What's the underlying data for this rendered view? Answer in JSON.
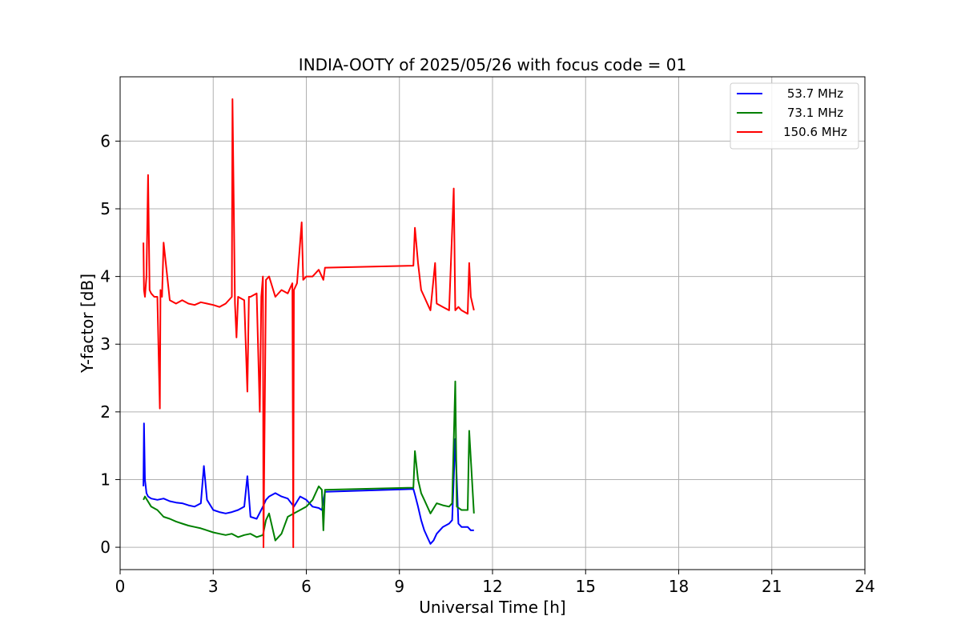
{
  "chart_data": {
    "type": "line",
    "title": "INDIA-OOTY of 2025/05/26 with focus code = 01",
    "xlabel": "Universal Time [h]",
    "ylabel": "Y-factor [dB]",
    "xlim": [
      0,
      24
    ],
    "ylim": [
      -0.33,
      6.95
    ],
    "xticks": [
      0,
      3,
      6,
      9,
      12,
      15,
      18,
      21,
      24
    ],
    "yticks": [
      0,
      1,
      2,
      3,
      4,
      5,
      6
    ],
    "grid": true,
    "legend_position": "top-right",
    "series": [
      {
        "name": "53.7 MHz",
        "color": "#0000ff",
        "x": [
          0.75,
          0.77,
          0.8,
          0.85,
          0.9,
          1.0,
          1.2,
          1.4,
          1.6,
          1.8,
          2.0,
          2.2,
          2.4,
          2.6,
          2.7,
          2.8,
          3.0,
          3.2,
          3.4,
          3.6,
          3.8,
          4.0,
          4.1,
          4.2,
          4.4,
          4.6,
          4.7,
          4.8,
          5.0,
          5.2,
          5.4,
          5.6,
          5.8,
          6.0,
          6.2,
          6.4,
          6.5,
          6.6,
          9.45,
          9.5,
          9.6,
          9.7,
          9.8,
          9.9,
          10.0,
          10.1,
          10.2,
          10.4,
          10.6,
          10.7,
          10.8,
          10.9,
          11.0,
          11.2,
          11.3,
          11.4
        ],
        "y": [
          0.9,
          1.83,
          1.0,
          0.8,
          0.75,
          0.72,
          0.7,
          0.72,
          0.68,
          0.66,
          0.65,
          0.62,
          0.6,
          0.65,
          1.2,
          0.7,
          0.55,
          0.52,
          0.5,
          0.52,
          0.55,
          0.6,
          1.05,
          0.45,
          0.42,
          0.6,
          0.7,
          0.75,
          0.8,
          0.75,
          0.72,
          0.6,
          0.75,
          0.7,
          0.6,
          0.58,
          0.55,
          0.82,
          0.86,
          0.78,
          0.6,
          0.4,
          0.25,
          0.15,
          0.05,
          0.1,
          0.2,
          0.3,
          0.35,
          0.4,
          1.6,
          0.35,
          0.3,
          0.3,
          0.25,
          0.25
        ]
      },
      {
        "name": "73.1 MHz",
        "color": "#008000",
        "x": [
          0.75,
          0.8,
          1.0,
          1.2,
          1.4,
          1.6,
          1.8,
          2.0,
          2.2,
          2.4,
          2.6,
          2.8,
          3.0,
          3.2,
          3.4,
          3.6,
          3.8,
          4.0,
          4.2,
          4.4,
          4.6,
          4.7,
          4.8,
          5.0,
          5.2,
          5.4,
          5.6,
          5.8,
          6.0,
          6.2,
          6.4,
          6.5,
          6.55,
          6.6,
          9.45,
          9.5,
          9.6,
          9.7,
          9.8,
          10.0,
          10.2,
          10.4,
          10.6,
          10.7,
          10.8,
          10.85,
          11.0,
          11.2,
          11.25,
          11.4
        ],
        "y": [
          0.7,
          0.75,
          0.6,
          0.55,
          0.45,
          0.42,
          0.38,
          0.35,
          0.32,
          0.3,
          0.28,
          0.25,
          0.22,
          0.2,
          0.18,
          0.2,
          0.15,
          0.18,
          0.2,
          0.15,
          0.18,
          0.4,
          0.5,
          0.1,
          0.2,
          0.45,
          0.5,
          0.55,
          0.6,
          0.7,
          0.9,
          0.85,
          0.25,
          0.85,
          0.88,
          1.42,
          1.0,
          0.8,
          0.7,
          0.5,
          0.65,
          0.62,
          0.6,
          0.65,
          2.45,
          0.6,
          0.55,
          0.55,
          1.72,
          0.5
        ]
      },
      {
        "name": "150.6 MHz",
        "color": "#ff0000",
        "x": [
          0.75,
          0.77,
          0.8,
          0.85,
          0.9,
          0.95,
          1.0,
          1.1,
          1.2,
          1.28,
          1.3,
          1.35,
          1.4,
          1.6,
          1.8,
          2.0,
          2.2,
          2.4,
          2.6,
          2.8,
          3.0,
          3.2,
          3.4,
          3.6,
          3.62,
          3.7,
          3.75,
          3.8,
          4.0,
          4.1,
          4.15,
          4.2,
          4.4,
          4.5,
          4.55,
          4.6,
          4.62,
          4.7,
          4.8,
          5.0,
          5.2,
          5.4,
          5.55,
          5.58,
          5.6,
          5.7,
          5.85,
          5.9,
          6.0,
          6.2,
          6.4,
          6.55,
          6.6,
          9.45,
          9.5,
          9.6,
          9.7,
          9.8,
          9.9,
          10.0,
          10.15,
          10.2,
          10.4,
          10.6,
          10.75,
          10.8,
          10.9,
          11.0,
          11.2,
          11.25,
          11.3,
          11.4
        ],
        "y": [
          4.5,
          3.8,
          3.7,
          4.0,
          5.5,
          3.8,
          3.75,
          3.7,
          3.7,
          2.05,
          3.8,
          3.7,
          4.5,
          3.65,
          3.6,
          3.65,
          3.6,
          3.58,
          3.62,
          3.6,
          3.58,
          3.55,
          3.6,
          3.7,
          6.62,
          3.6,
          3.1,
          3.7,
          3.65,
          2.3,
          3.7,
          3.7,
          3.75,
          2.0,
          3.7,
          4.0,
          0.0,
          3.95,
          4.0,
          3.7,
          3.8,
          3.75,
          3.9,
          0.0,
          3.8,
          3.9,
          4.8,
          3.95,
          4.0,
          4.0,
          4.1,
          3.95,
          4.13,
          4.16,
          4.72,
          4.2,
          3.8,
          3.7,
          3.6,
          3.5,
          4.2,
          3.6,
          3.55,
          3.5,
          5.3,
          3.5,
          3.55,
          3.5,
          3.45,
          4.2,
          3.7,
          3.5
        ]
      }
    ]
  }
}
